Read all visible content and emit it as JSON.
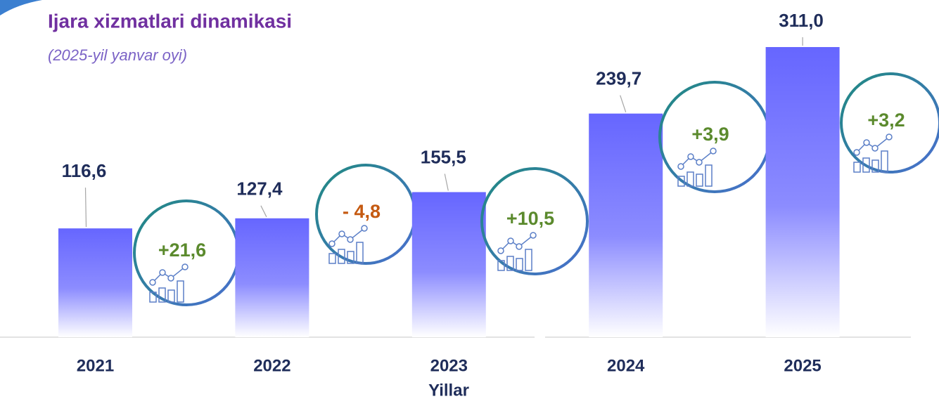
{
  "chart_data": {
    "type": "bar",
    "title": "Ijara xizmatlari dinamikasi",
    "subtitle": "(2025-yil yanvar oyi)",
    "x_label": "Yillar",
    "categories": [
      "2021",
      "2022",
      "2023",
      "2024",
      "2025"
    ],
    "values": [
      116.6,
      127.4,
      155.5,
      239.7,
      311.0
    ],
    "value_labels": [
      "116,6",
      "127,4",
      "155,5",
      "239,7",
      "311,0"
    ],
    "annotations": [
      "+21,6",
      "- 4,8",
      "+10,5",
      "+3,9",
      "+3,2"
    ],
    "annotation_colors": [
      "#5b8a2d",
      "#c55a11",
      "#5b8a2d",
      "#5b8a2d",
      "#5b8a2d"
    ],
    "color": "#6666ff"
  }
}
